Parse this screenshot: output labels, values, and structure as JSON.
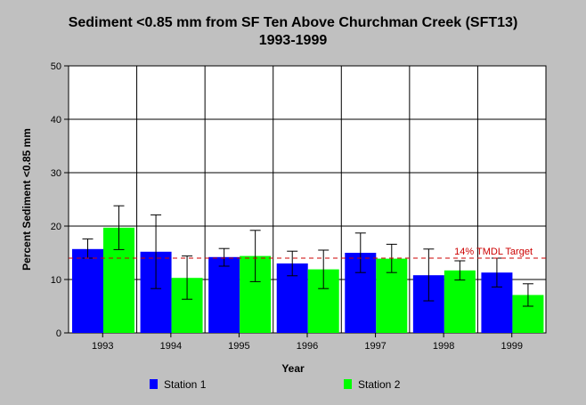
{
  "chart_data": {
    "type": "bar",
    "title": "Sediment <0.85 mm from SF Ten Above Churchman Creek (SFT13)",
    "subtitle": "1993-1999",
    "xlabel": "Year",
    "ylabel": "Percent Sediment <0.85 mm",
    "ylim": [
      0,
      50
    ],
    "yticks": [
      "0",
      "10",
      "20",
      "30",
      "40",
      "50"
    ],
    "categories": [
      "1993",
      "1994",
      "1995",
      "1996",
      "1997",
      "1998",
      "1999"
    ],
    "series": [
      {
        "name": "Station 1",
        "color": "#0000ff",
        "values": [
          15.7,
          15.2,
          14.2,
          13.0,
          15.0,
          10.8,
          11.3
        ],
        "error_low": [
          14.0,
          8.3,
          12.5,
          10.7,
          11.3,
          6.0,
          8.6
        ],
        "error_high": [
          17.6,
          22.1,
          15.8,
          15.3,
          18.7,
          15.7,
          14.0
        ]
      },
      {
        "name": "Station 2",
        "color": "#00ff00",
        "values": [
          19.7,
          10.3,
          14.4,
          11.9,
          13.9,
          11.7,
          7.1
        ],
        "error_low": [
          15.6,
          6.3,
          9.6,
          8.3,
          11.3,
          9.9,
          5.0
        ],
        "error_high": [
          23.8,
          14.4,
          19.2,
          15.5,
          16.6,
          13.5,
          9.2
        ]
      }
    ],
    "reference_line": {
      "value": 14,
      "label": "14% TMDL Target",
      "color": "#cc0000"
    },
    "grid": true,
    "legend_position": "bottom"
  }
}
